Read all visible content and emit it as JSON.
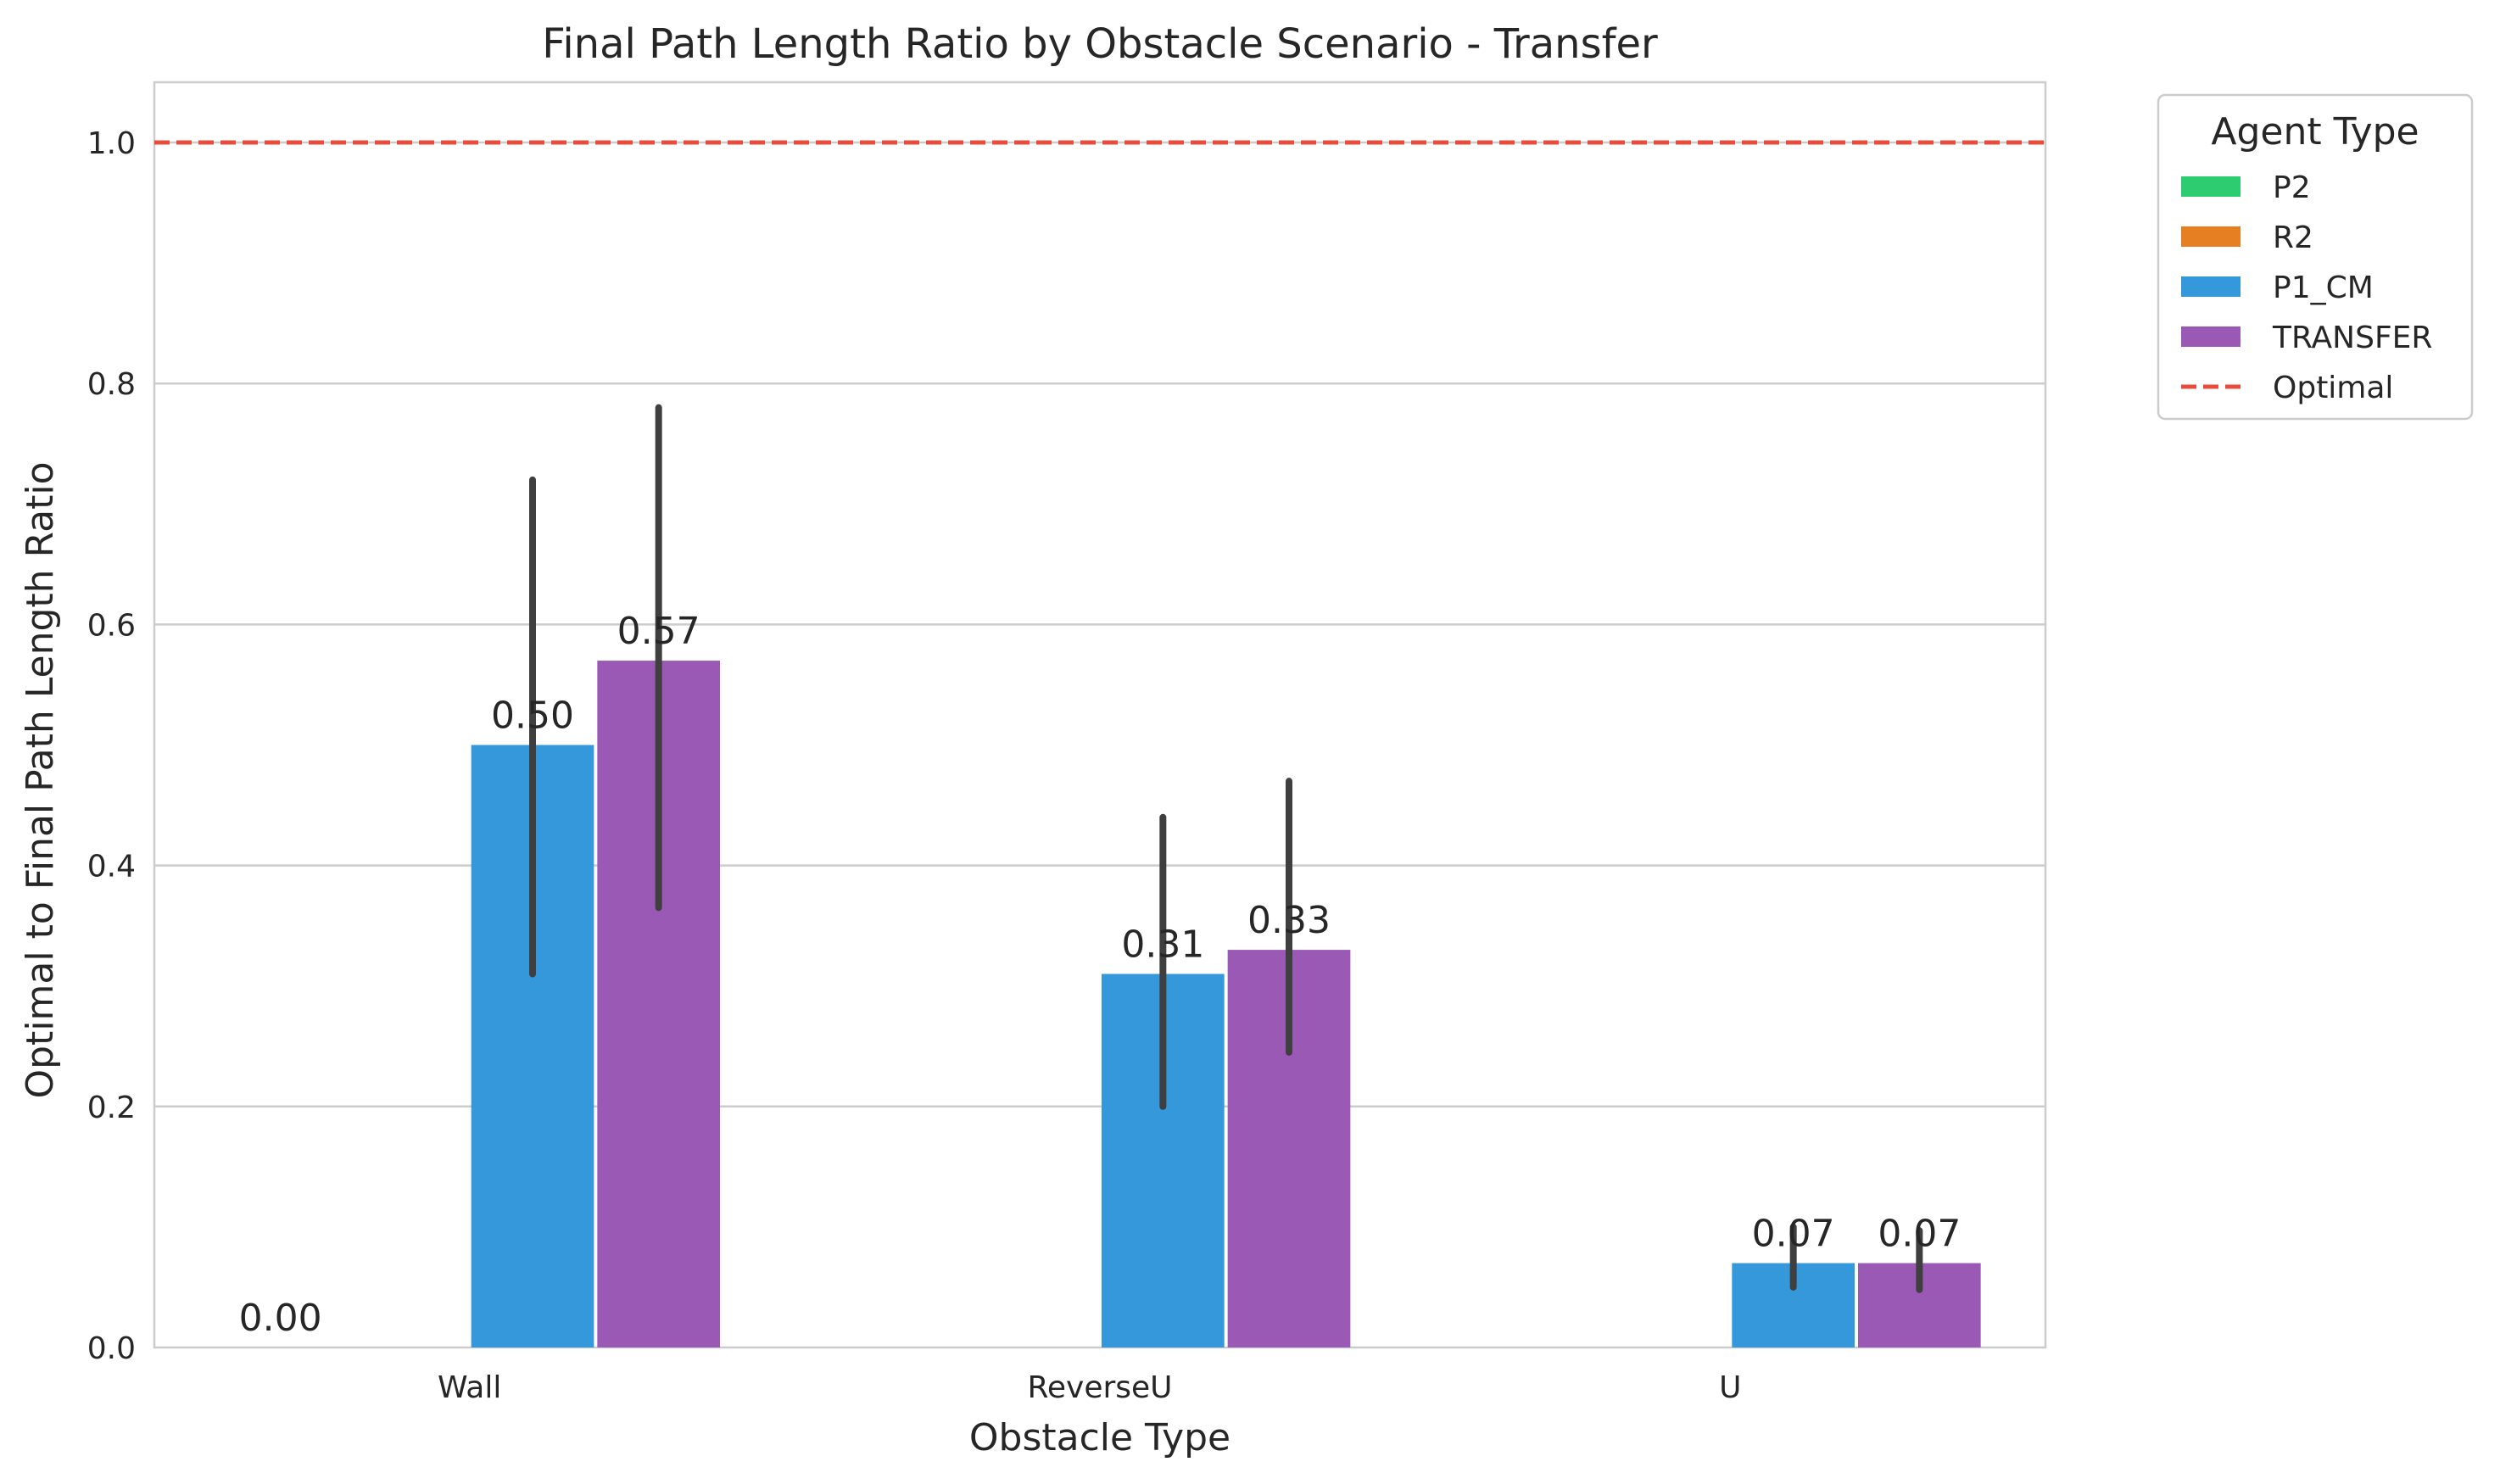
{
  "chart_data": {
    "type": "bar",
    "title": "Final Path Length Ratio by Obstacle Scenario - Transfer",
    "xlabel": "Obstacle Type",
    "ylabel": "Optimal to Final Path Length Ratio",
    "categories": [
      "Wall",
      "ReverseU",
      "U"
    ],
    "ylim": [
      0,
      1.05
    ],
    "yticks": [
      "0.0",
      "0.2",
      "0.4",
      "0.6",
      "0.8",
      "1.0"
    ],
    "grid": "horizontal",
    "series": [
      {
        "name": "P2",
        "color": "#2ecc71",
        "values": [
          null,
          null,
          null
        ],
        "labels": [
          "",
          "",
          ""
        ],
        "err_low": [
          null,
          null,
          null
        ],
        "err_high": [
          null,
          null,
          null
        ]
      },
      {
        "name": "R2",
        "color": "#e67e22",
        "values": [
          null,
          null,
          null
        ],
        "labels": [
          "",
          "",
          ""
        ],
        "err_low": [
          null,
          null,
          null
        ],
        "err_high": [
          null,
          null,
          null
        ]
      },
      {
        "name": "P1_CM",
        "color": "#3498db",
        "values": [
          0.5,
          0.31,
          0.07
        ],
        "labels": [
          "0.50",
          "0.31",
          "0.07"
        ],
        "err_low": [
          0.31,
          0.2,
          0.05
        ],
        "err_high": [
          0.72,
          0.44,
          0.1
        ]
      },
      {
        "name": "TRANSFER",
        "color": "#9b59b6",
        "values": [
          0.57,
          0.33,
          0.07
        ],
        "labels": [
          "0.57",
          "0.33",
          "0.07"
        ],
        "err_low": [
          0.365,
          0.245,
          0.048
        ],
        "err_high": [
          0.78,
          0.47,
          0.097
        ]
      }
    ],
    "extra_labels": [
      {
        "category": "Wall",
        "series": "P2",
        "text": "0.00"
      }
    ],
    "reference_line": {
      "y": 1.0,
      "name": "Optimal",
      "color": "#e74c3c",
      "style": "dashed"
    },
    "legend": {
      "title": "Agent Type",
      "placement": "outside-top-right"
    }
  }
}
